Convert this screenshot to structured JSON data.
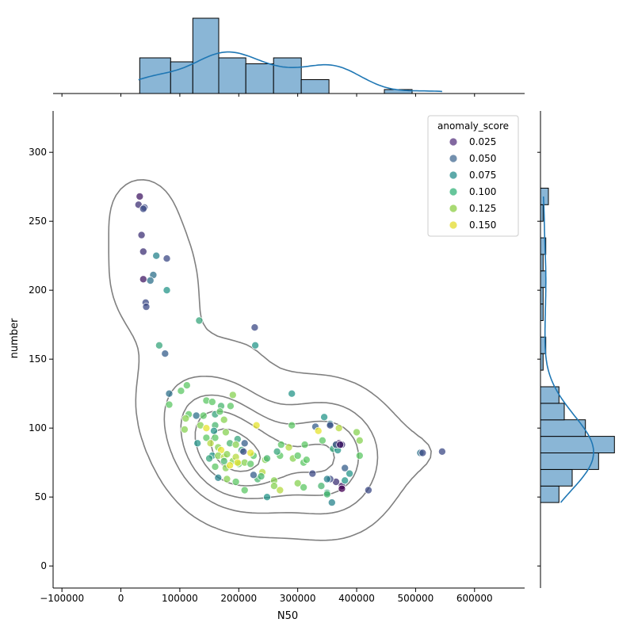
{
  "chart_data": {
    "type": "scatter",
    "xlabel": "N50",
    "ylabel": "number",
    "xlim": [
      -115000,
      685000
    ],
    "ylim": [
      -16,
      330
    ],
    "xticks": [
      -100000,
      0,
      100000,
      200000,
      300000,
      400000,
      500000,
      600000
    ],
    "xtick_labels": [
      "−100000",
      "0",
      "100000",
      "200000",
      "300000",
      "400000",
      "500000",
      "600000"
    ],
    "yticks": [
      0,
      50,
      100,
      150,
      200,
      250,
      300
    ],
    "ytick_labels": [
      "0",
      "50",
      "100",
      "150",
      "200",
      "250",
      "300"
    ],
    "grid": false,
    "legend": {
      "title": "anomaly_score",
      "placement": "top-right",
      "entries": [
        {
          "label": "0.025",
          "color": "#6c4e8f"
        },
        {
          "label": "0.050",
          "color": "#5a7da0"
        },
        {
          "label": "0.075",
          "color": "#3f9a9a"
        },
        {
          "label": "0.100",
          "color": "#4cbc8a"
        },
        {
          "label": "0.125",
          "color": "#9ad45a"
        },
        {
          "label": "0.150",
          "color": "#e6df45"
        }
      ]
    },
    "colormap": "viridis",
    "points": [
      [
        32000,
        268,
        0.03
      ],
      [
        30000,
        262,
        0.04
      ],
      [
        40000,
        260,
        0.05
      ],
      [
        38000,
        259,
        0.05
      ],
      [
        35000,
        240,
        0.04
      ],
      [
        38000,
        228,
        0.04
      ],
      [
        60000,
        225,
        0.08
      ],
      [
        78000,
        223,
        0.05
      ],
      [
        55000,
        211,
        0.07
      ],
      [
        38000,
        208,
        0.03
      ],
      [
        50000,
        207,
        0.07
      ],
      [
        42000,
        191,
        0.05
      ],
      [
        43000,
        188,
        0.05
      ],
      [
        78000,
        200,
        0.09
      ],
      [
        133000,
        178,
        0.1
      ],
      [
        65000,
        160,
        0.1
      ],
      [
        75000,
        154,
        0.06
      ],
      [
        227000,
        173,
        0.05
      ],
      [
        228000,
        160,
        0.09
      ],
      [
        112000,
        131,
        0.12
      ],
      [
        82000,
        125,
        0.07
      ],
      [
        102000,
        127,
        0.12
      ],
      [
        82000,
        117,
        0.12
      ],
      [
        145000,
        120,
        0.12
      ],
      [
        155000,
        119,
        0.12
      ],
      [
        170000,
        116,
        0.11
      ],
      [
        186000,
        116,
        0.12
      ],
      [
        190000,
        124,
        0.13
      ],
      [
        128000,
        109,
        0.07
      ],
      [
        115000,
        110,
        0.12
      ],
      [
        110000,
        107,
        0.13
      ],
      [
        140000,
        109,
        0.12
      ],
      [
        160000,
        110,
        0.1
      ],
      [
        168000,
        112,
        0.12
      ],
      [
        175000,
        106,
        0.13
      ],
      [
        108000,
        99,
        0.13
      ],
      [
        135000,
        102,
        0.13
      ],
      [
        145000,
        100,
        0.15
      ],
      [
        160000,
        102,
        0.11
      ],
      [
        158000,
        98,
        0.09
      ],
      [
        178000,
        97,
        0.13
      ],
      [
        198000,
        92,
        0.1
      ],
      [
        145000,
        93,
        0.12
      ],
      [
        160000,
        93,
        0.12
      ],
      [
        152000,
        89,
        0.14
      ],
      [
        130000,
        89,
        0.09
      ],
      [
        165000,
        86,
        0.13
      ],
      [
        170000,
        84,
        0.15
      ],
      [
        185000,
        89,
        0.11
      ],
      [
        195000,
        88,
        0.13
      ],
      [
        210000,
        89,
        0.06
      ],
      [
        205000,
        84,
        0.1
      ],
      [
        208000,
        83,
        0.05
      ],
      [
        225000,
        80,
        0.12
      ],
      [
        220000,
        82,
        0.15
      ],
      [
        155000,
        80,
        0.09
      ],
      [
        165000,
        80,
        0.13
      ],
      [
        175000,
        79,
        0.14
      ],
      [
        180000,
        81,
        0.13
      ],
      [
        190000,
        76,
        0.13
      ],
      [
        200000,
        74,
        0.12
      ],
      [
        210000,
        75,
        0.13
      ],
      [
        220000,
        74,
        0.12
      ],
      [
        150000,
        78,
        0.1
      ],
      [
        160000,
        72,
        0.12
      ],
      [
        175000,
        76,
        0.11
      ],
      [
        178000,
        71,
        0.13
      ],
      [
        185000,
        73,
        0.15
      ],
      [
        195000,
        79,
        0.14
      ],
      [
        198000,
        75,
        0.15
      ],
      [
        230000,
        102,
        0.15
      ],
      [
        245000,
        77,
        0.13
      ],
      [
        248000,
        78,
        0.11
      ],
      [
        240000,
        68,
        0.14
      ],
      [
        232000,
        63,
        0.11
      ],
      [
        238000,
        65,
        0.11
      ],
      [
        225000,
        66,
        0.06
      ],
      [
        165000,
        64,
        0.08
      ],
      [
        180000,
        63,
        0.13
      ],
      [
        195000,
        61,
        0.12
      ],
      [
        210000,
        55,
        0.12
      ],
      [
        248000,
        50,
        0.09
      ],
      [
        260000,
        62,
        0.13
      ],
      [
        270000,
        80,
        0.12
      ],
      [
        265000,
        83,
        0.1
      ],
      [
        272000,
        88,
        0.12
      ],
      [
        290000,
        102,
        0.12
      ],
      [
        285000,
        86,
        0.14
      ],
      [
        292000,
        78,
        0.13
      ],
      [
        300000,
        80,
        0.12
      ],
      [
        290000,
        125,
        0.09
      ],
      [
        310000,
        75,
        0.12
      ],
      [
        315000,
        77,
        0.12
      ],
      [
        312000,
        88,
        0.12
      ],
      [
        325000,
        67,
        0.05
      ],
      [
        330000,
        101,
        0.06
      ],
      [
        335000,
        98,
        0.15
      ],
      [
        345000,
        108,
        0.09
      ],
      [
        342000,
        91,
        0.12
      ],
      [
        355000,
        103,
        0.08
      ],
      [
        360000,
        85,
        0.1
      ],
      [
        365000,
        88,
        0.11
      ],
      [
        368000,
        84,
        0.09
      ],
      [
        370000,
        89,
        0.03
      ],
      [
        372000,
        88,
        0.04
      ],
      [
        375000,
        88,
        0.04
      ],
      [
        365000,
        88,
        0.05
      ],
      [
        370000,
        100,
        0.14
      ],
      [
        380000,
        71,
        0.06
      ],
      [
        375000,
        58,
        0.03
      ],
      [
        365000,
        61,
        0.04
      ],
      [
        355000,
        63,
        0.05
      ],
      [
        350000,
        63,
        0.08
      ],
      [
        350000,
        53,
        0.1
      ],
      [
        358000,
        46,
        0.08
      ],
      [
        340000,
        58,
        0.11
      ],
      [
        350000,
        52,
        0.11
      ],
      [
        310000,
        57,
        0.12
      ],
      [
        300000,
        60,
        0.13
      ],
      [
        260000,
        58,
        0.13
      ],
      [
        270000,
        55,
        0.14
      ],
      [
        380000,
        62,
        0.09
      ],
      [
        388000,
        67,
        0.09
      ],
      [
        400000,
        97,
        0.13
      ],
      [
        405000,
        91,
        0.13
      ],
      [
        405000,
        80,
        0.12
      ],
      [
        420000,
        55,
        0.05
      ],
      [
        508000,
        82,
        0.07
      ],
      [
        512000,
        82,
        0.05
      ],
      [
        545000,
        83,
        0.05
      ],
      [
        355000,
        102,
        0.05
      ],
      [
        375000,
        56,
        0.02
      ],
      [
        372000,
        88,
        0.03
      ]
    ],
    "x_hist": {
      "bin_edges": [
        32000,
        84400,
        122000,
        166000,
        212000,
        259000,
        306000,
        353000,
        400000,
        447000,
        494000,
        541000
      ],
      "counts": [
        18,
        16,
        38,
        18,
        15,
        18,
        7,
        0,
        0,
        2,
        0
      ],
      "ylim": [
        0,
        40
      ]
    },
    "y_hist": {
      "bin_edges": [
        46,
        58,
        70,
        82,
        94,
        106,
        118,
        130,
        142,
        154,
        166,
        178,
        190,
        202,
        214,
        226,
        238,
        250,
        262,
        274
      ],
      "counts": [
        7,
        12,
        22,
        28,
        17,
        9,
        7,
        0,
        1,
        2,
        0,
        1,
        1,
        2,
        1,
        2,
        0,
        1,
        3
      ],
      "xlim": [
        0,
        30
      ]
    }
  }
}
